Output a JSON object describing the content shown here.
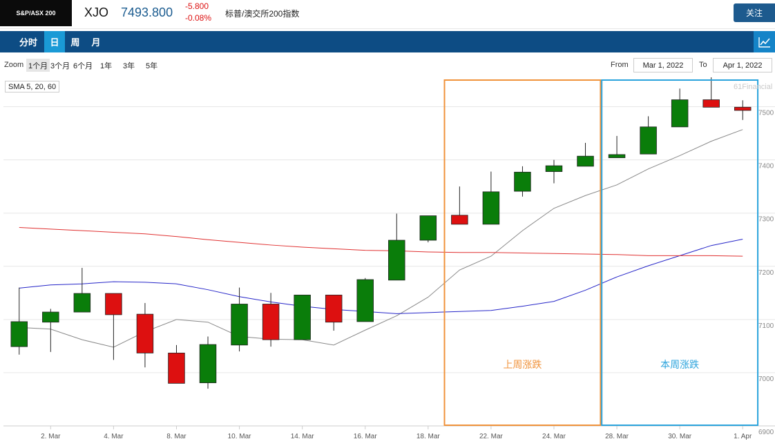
{
  "header": {
    "logo_text": "S&P/ASX 200",
    "symbol": "XJO",
    "price": "7493.800",
    "change_abs": "-5.800",
    "change_pct": "-0.08%",
    "full_name": "标普/澳交所200指数",
    "follow_label": "关注"
  },
  "tabs": [
    {
      "label": "分时",
      "active": false
    },
    {
      "label": "日",
      "active": true
    },
    {
      "label": "周",
      "active": false
    },
    {
      "label": "月",
      "active": false
    }
  ],
  "zoom": {
    "label": "Zoom",
    "options": [
      {
        "label": "1个月",
        "active": true
      },
      {
        "label": "3个月",
        "active": false
      },
      {
        "label": "6个月",
        "active": false
      },
      {
        "label": "1年",
        "active": false
      },
      {
        "label": "3年",
        "active": false
      },
      {
        "label": "5年",
        "active": false
      }
    ],
    "from_label": "From",
    "from_value": "Mar 1, 2022",
    "to_label": "To",
    "to_value": "Apr 1, 2022"
  },
  "indicator_label": "SMA 5, 20, 60",
  "credit": "61Financial",
  "colors": {
    "up": "#0a7d0a",
    "down": "#dd1010",
    "sma5": "#888888",
    "sma20": "#2424c8",
    "sma60": "#e03030",
    "box_last_week": "#f0923a",
    "box_this_week": "#2aa3dc"
  },
  "chart_data": {
    "type": "candlestick",
    "x_tick_labels": [
      "2. Mar",
      "4. Mar",
      "8. Mar",
      "10. Mar",
      "14. Mar",
      "16. Mar",
      "18. Mar",
      "22. Mar",
      "24. Mar",
      "28. Mar",
      "30. Mar",
      "1. Apr"
    ],
    "y_tick_labels": [
      "6900",
      "7000",
      "7100",
      "7200",
      "7300",
      "7400",
      "7500"
    ],
    "ylim": [
      6900,
      7550
    ],
    "candles": [
      {
        "open": 7049,
        "close": 7096,
        "high": 7160,
        "low": 7034
      },
      {
        "open": 7095,
        "close": 7114,
        "high": 7120,
        "low": 7039
      },
      {
        "open": 7114,
        "close": 7149,
        "high": 7197,
        "low": 7114
      },
      {
        "open": 7149,
        "close": 7109,
        "high": 7149,
        "low": 7024
      },
      {
        "open": 7110,
        "close": 7037,
        "high": 7131,
        "low": 7010
      },
      {
        "open": 7037,
        "close": 6980,
        "high": 7052,
        "low": 6980
      },
      {
        "open": 6981,
        "close": 7053,
        "high": 7068,
        "low": 6970
      },
      {
        "open": 7052,
        "close": 7129,
        "high": 7160,
        "low": 7040
      },
      {
        "open": 7129,
        "close": 7062,
        "high": 7150,
        "low": 7049
      },
      {
        "open": 7062,
        "close": 7146,
        "high": 7146,
        "low": 7062
      },
      {
        "open": 7146,
        "close": 7095,
        "high": 7146,
        "low": 7079
      },
      {
        "open": 7096,
        "close": 7175,
        "high": 7178,
        "low": 7096
      },
      {
        "open": 7174,
        "close": 7249,
        "high": 7299,
        "low": 7174
      },
      {
        "open": 7249,
        "close": 7295,
        "high": 7295,
        "low": 7245
      },
      {
        "open": 7296,
        "close": 7279,
        "high": 7350,
        "low": 7279
      },
      {
        "open": 7279,
        "close": 7340,
        "high": 7378,
        "low": 7279
      },
      {
        "open": 7341,
        "close": 7377,
        "high": 7388,
        "low": 7331
      },
      {
        "open": 7378,
        "close": 7389,
        "high": 7400,
        "low": 7356
      },
      {
        "open": 7388,
        "close": 7407,
        "high": 7432,
        "low": 7388
      },
      {
        "open": 7404,
        "close": 7410,
        "high": 7445,
        "low": 7404
      },
      {
        "open": 7411,
        "close": 7462,
        "high": 7482,
        "low": 7411
      },
      {
        "open": 7462,
        "close": 7513,
        "high": 7534,
        "low": 7462
      },
      {
        "open": 7513,
        "close": 7499,
        "high": 7556,
        "low": 7499
      },
      {
        "open": 7499,
        "close": 7493,
        "high": 7512,
        "low": 7475
      }
    ],
    "series": [
      {
        "name": "SMA 5",
        "values": [
          7085,
          7082,
          7062,
          7048,
          7077,
          7100,
          7095,
          7068,
          7063,
          7062,
          7052,
          7080,
          7107,
          7142,
          7193,
          7219,
          7267,
          7309,
          7333,
          7353,
          7383,
          7408,
          7435,
          7457
        ]
      },
      {
        "name": "SMA 20",
        "values": [
          7159,
          7165,
          7167,
          7171,
          7170,
          7167,
          7156,
          7143,
          7133,
          7125,
          7119,
          7115,
          7111,
          7113,
          7115,
          7117,
          7125,
          7134,
          7155,
          7180,
          7201,
          7220,
          7239,
          7251
        ]
      },
      {
        "name": "SMA 60",
        "values": [
          7273,
          7270,
          7267,
          7264,
          7261,
          7256,
          7250,
          7245,
          7240,
          7236,
          7233,
          7230,
          7229,
          7227,
          7226,
          7226,
          7225,
          7224,
          7223,
          7222,
          7220,
          7220,
          7220,
          7219
        ]
      }
    ],
    "annotations": [
      {
        "label": "上周涨跌",
        "from_index": 14,
        "to_index": 18,
        "color": "#f0923a"
      },
      {
        "label": "本周涨跌",
        "from_index": 19,
        "to_index": 23,
        "color": "#2aa3dc"
      }
    ]
  }
}
